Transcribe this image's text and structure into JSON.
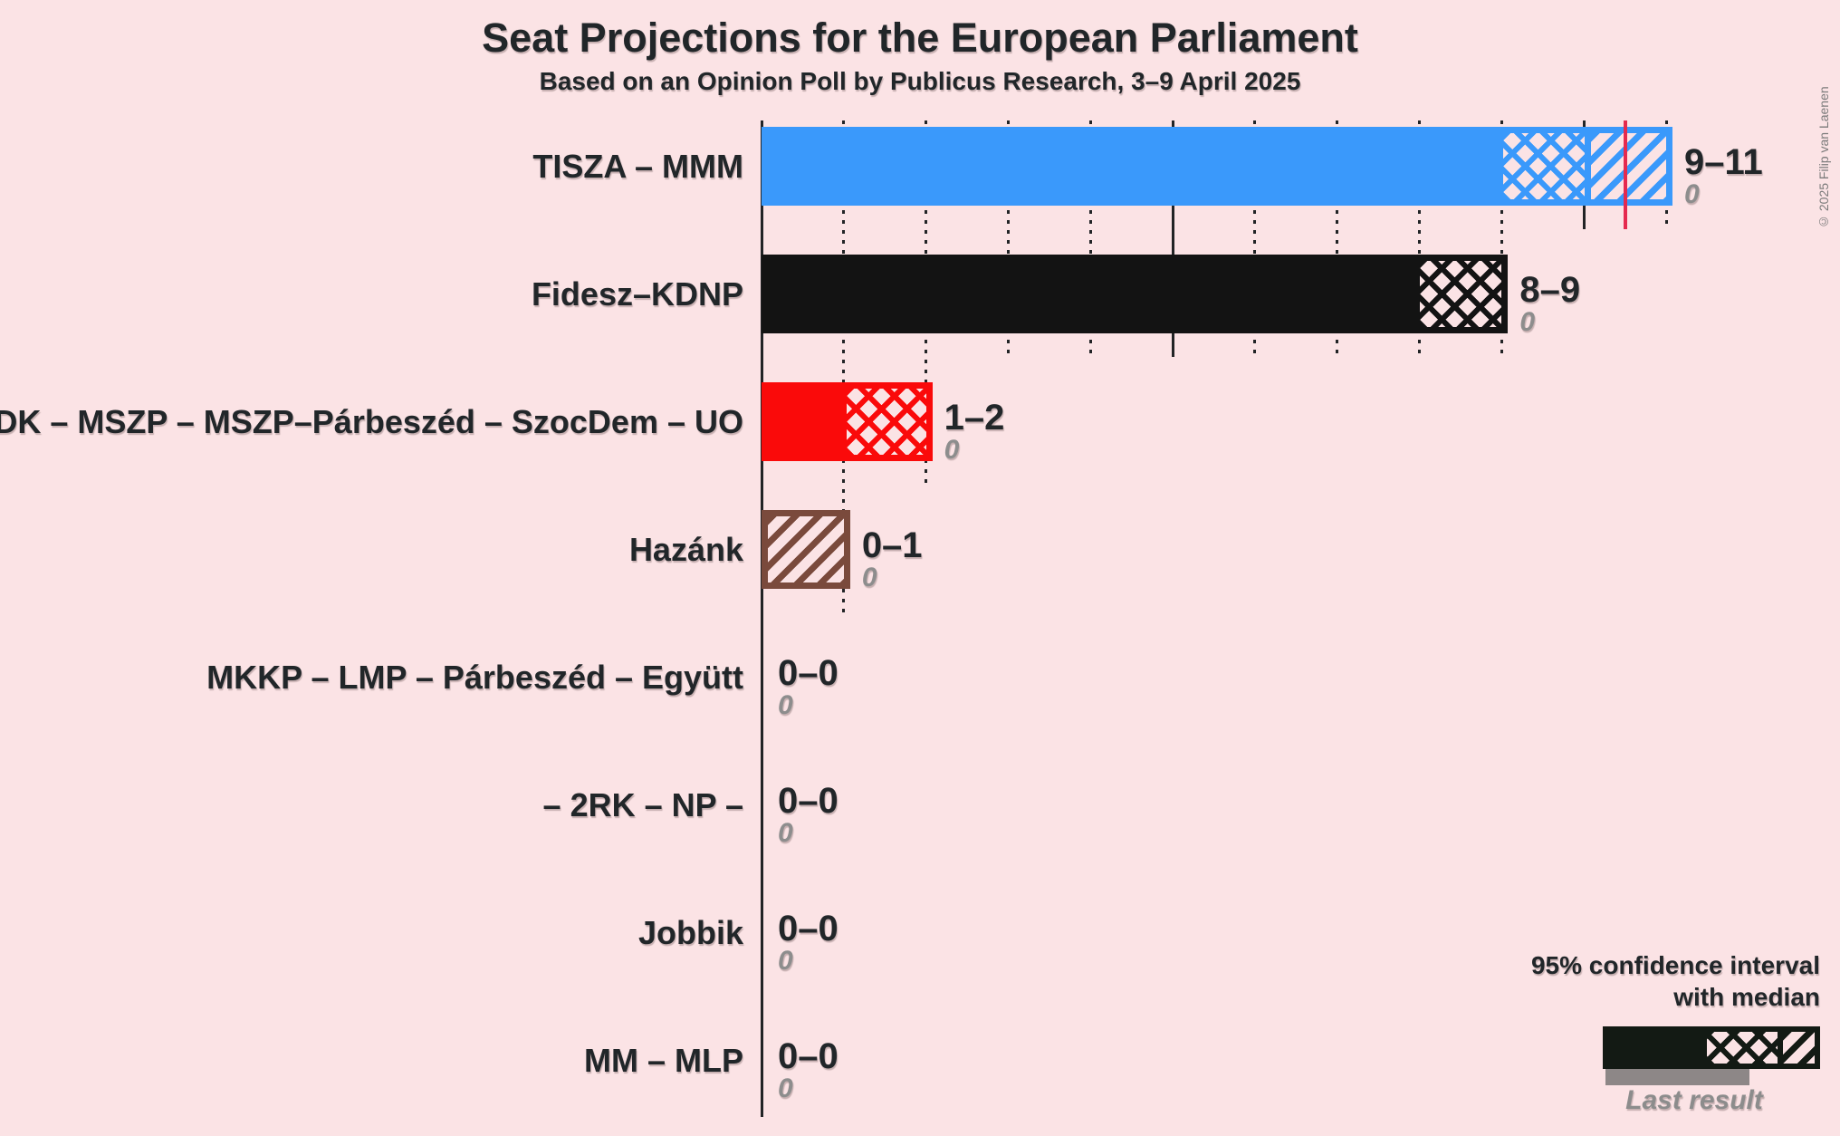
{
  "title": "Seat Projections for the European Parliament",
  "subtitle": "Based on an Opinion Poll by Publicus Research, 3–9 April 2025",
  "copyright": "© 2025 Filip van Laenen",
  "legend": {
    "ci_line1": "95% confidence interval",
    "ci_line2": "with median",
    "last_result": "Last result",
    "sample_color": "#131a14",
    "last_result_color": "#8d8787"
  },
  "colors": {
    "background": "#fbe3e5",
    "ink": "#222426",
    "gridline": "#222426",
    "majority_line": "#e52a4f",
    "muted_value": "#8d8d8d"
  },
  "chart_data": {
    "type": "bar",
    "orientation": "horizontal",
    "title": "Seat Projections for the European Parliament",
    "subtitle": "Based on an Opinion Poll by Publicus Research, 3–9 April 2025",
    "unit": "seats",
    "x_axis": {
      "min": 0,
      "max": 11,
      "gridline_every": 1,
      "solid_gridline_every": 5,
      "gridlines_dotted": true
    },
    "majority_line": {
      "value": 10.5,
      "color": "#e52a4f"
    },
    "parties": [
      {
        "name": "TISZA – MMM",
        "color": "#3a99fb",
        "ci_low": 9,
        "median": 10,
        "ci_high": 11,
        "value_label": "9–11",
        "last_result": 0,
        "last_result_label": "0"
      },
      {
        "name": "Fidesz–KDNP",
        "color": "#131313",
        "ci_low": 8,
        "median": 9,
        "ci_high": 9,
        "value_label": "8–9",
        "last_result": 0,
        "last_result_label": "0"
      },
      {
        "name": "DK – MSZP – MSZP–Párbeszéd – SzocDem – UO",
        "color": "#fa0a0a",
        "ci_low": 1,
        "median": 2,
        "ci_high": 2,
        "value_label": "1–2",
        "last_result": 0,
        "last_result_label": "0"
      },
      {
        "name": "Hazánk",
        "color": "#7a4a3c",
        "ci_low": 0,
        "median": 0,
        "ci_high": 1,
        "value_label": "0–1",
        "last_result": 0,
        "last_result_label": "0"
      },
      {
        "name": "MKKP – LMP – Párbeszéd – Együtt",
        "color": "#2fa148",
        "ci_low": 0,
        "median": 0,
        "ci_high": 0,
        "value_label": "0–0",
        "last_result": 0,
        "last_result_label": "0"
      },
      {
        "name": "– 2RK – NP –",
        "color": "#888888",
        "ci_low": 0,
        "median": 0,
        "ci_high": 0,
        "value_label": "0–0",
        "last_result": 0,
        "last_result_label": "0"
      },
      {
        "name": "Jobbik",
        "color": "#0a6b3c",
        "ci_low": 0,
        "median": 0,
        "ci_high": 0,
        "value_label": "0–0",
        "last_result": 0,
        "last_result_label": "0"
      },
      {
        "name": "MM – MLP",
        "color": "#7b39a8",
        "ci_low": 0,
        "median": 0,
        "ci_high": 0,
        "value_label": "0–0",
        "last_result": 0,
        "last_result_label": "0"
      }
    ]
  }
}
